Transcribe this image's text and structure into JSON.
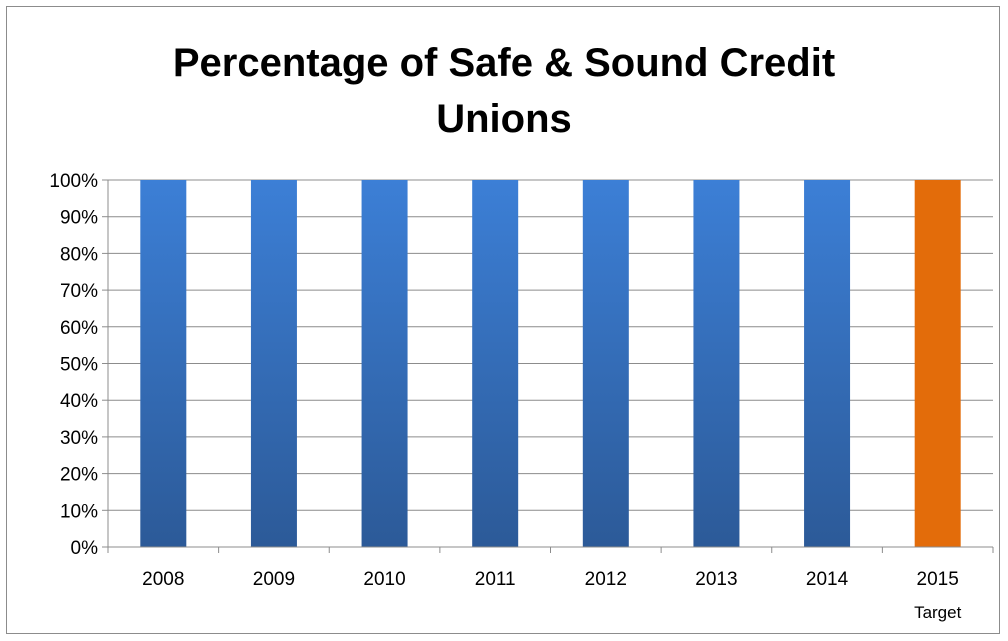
{
  "chart_data": {
    "type": "bar",
    "title_line1": "Percentage of Safe & Sound Credit",
    "title_line2": "Unions",
    "categories": [
      "2008",
      "2009",
      "2010",
      "2011",
      "2012",
      "2013",
      "2014",
      "2015"
    ],
    "category_sublabels": [
      "",
      "",
      "",
      "",
      "",
      "",
      "",
      "Target"
    ],
    "values": [
      100,
      100,
      100,
      100,
      100,
      100,
      100,
      100
    ],
    "bar_colors": [
      "#3a6fba",
      "#3a6fba",
      "#3a6fba",
      "#3a6fba",
      "#3a6fba",
      "#3a6fba",
      "#3a6fba",
      "#e36c0a"
    ],
    "y_ticks": [
      "0%",
      "10%",
      "20%",
      "30%",
      "40%",
      "50%",
      "60%",
      "70%",
      "80%",
      "90%",
      "100%"
    ],
    "ylim": [
      0,
      100
    ],
    "grid": true,
    "legend": "none",
    "colors": {
      "actual": "#3a6fba",
      "target": "#e36c0a",
      "grid": "#8c8c8c"
    }
  }
}
